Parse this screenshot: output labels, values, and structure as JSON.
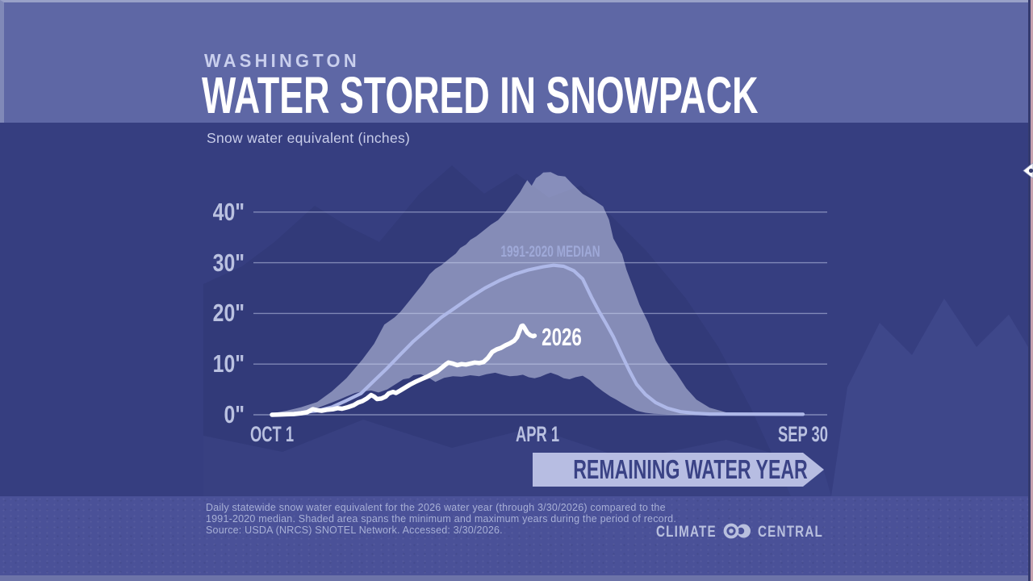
{
  "header": {
    "kicker": "WASHINGTON",
    "title": "WATER STORED IN SNOWPACK",
    "subtitle": "Snow water equivalent (inches)"
  },
  "banner": {
    "label": "REMAINING WATER YEAR"
  },
  "footer": {
    "lines": [
      "Daily statewide snow water equivalent for the 2026 water year (through 3/30/2026) compared to the",
      "1991-2020 median. Shaded area spans the minimum and maximum years during the period of record.",
      "Source: USDA (NRCS) SNOTEL Network. Accessed: 3/30/2026."
    ]
  },
  "logo": {
    "left": "CLIMATE",
    "right": "CENTRAL"
  },
  "chart_data": {
    "type": "area+line",
    "title": "Washington — Water Stored in Snowpack",
    "ylabel": "Snow water equivalent (inches)",
    "grid": "horizontal",
    "ylim": [
      0,
      50
    ],
    "yticks": [
      "0\"",
      "10\"",
      "20\"",
      "30\"",
      "40\""
    ],
    "ytick_values": [
      0,
      10,
      20,
      30,
      40
    ],
    "x_axis": {
      "unit": "days since Oct 1 (water year)",
      "xlim": [
        0,
        364
      ],
      "labels": [
        {
          "text": "OCT 1",
          "day": 0
        },
        {
          "text": "APR 1",
          "day": 182
        },
        {
          "text": "SEP 30",
          "day": 364
        }
      ]
    },
    "band": {
      "name": "min-max range during period of record",
      "max": [
        [
          0,
          0.3
        ],
        [
          10,
          0.8
        ],
        [
          20,
          1.5
        ],
        [
          31,
          2.5
        ],
        [
          41,
          4.6
        ],
        [
          51,
          7.2
        ],
        [
          62,
          10.9
        ],
        [
          70,
          14
        ],
        [
          77,
          17.8
        ],
        [
          84,
          19.2
        ],
        [
          88,
          20.3
        ],
        [
          94,
          22.4
        ],
        [
          100,
          24.6
        ],
        [
          104,
          26
        ],
        [
          108,
          27.7
        ],
        [
          112,
          28.8
        ],
        [
          116,
          29.5
        ],
        [
          122,
          30.9
        ],
        [
          126,
          31.8
        ],
        [
          129,
          32.9
        ],
        [
          133,
          33.6
        ],
        [
          136,
          34.5
        ],
        [
          140,
          35.2
        ],
        [
          144,
          36.1
        ],
        [
          150,
          37.5
        ],
        [
          155,
          38.4
        ],
        [
          160,
          40
        ],
        [
          165,
          42
        ],
        [
          170,
          43.9
        ],
        [
          173,
          45.4
        ],
        [
          175,
          46.3
        ],
        [
          178,
          45.2
        ],
        [
          181,
          46.7
        ],
        [
          184,
          47.3
        ],
        [
          186,
          47.8
        ],
        [
          191,
          47.9
        ],
        [
          196,
          47.2
        ],
        [
          201,
          47
        ],
        [
          206,
          45.5
        ],
        [
          213,
          43.6
        ],
        [
          221,
          42.3
        ],
        [
          227,
          41.1
        ],
        [
          231,
          38.5
        ],
        [
          234,
          34.8
        ],
        [
          240,
          31.7
        ],
        [
          243,
          28.6
        ],
        [
          248,
          24.8
        ],
        [
          252,
          21.7
        ],
        [
          258,
          18.1
        ],
        [
          263,
          14.5
        ],
        [
          270,
          10.8
        ],
        [
          277,
          8.3
        ],
        [
          284,
          5.2
        ],
        [
          291,
          3
        ],
        [
          300,
          1.4
        ],
        [
          311,
          0.5
        ],
        [
          322,
          0.1
        ],
        [
          364,
          0
        ]
      ],
      "min": [
        [
          0,
          0
        ],
        [
          10,
          0.2
        ],
        [
          20,
          0.5
        ],
        [
          31,
          1.3
        ],
        [
          41,
          2.4
        ],
        [
          46,
          3
        ],
        [
          51,
          3.6
        ],
        [
          57,
          4.3
        ],
        [
          62,
          4.6
        ],
        [
          68,
          4.8
        ],
        [
          73,
          4.4
        ],
        [
          79,
          5
        ],
        [
          85,
          6.1
        ],
        [
          90,
          7
        ],
        [
          94,
          7.2
        ],
        [
          97,
          7.8
        ],
        [
          102,
          8
        ],
        [
          107,
          7.4
        ],
        [
          112,
          6.5
        ],
        [
          118,
          7.3
        ],
        [
          124,
          7.6
        ],
        [
          130,
          7.5
        ],
        [
          136,
          7.8
        ],
        [
          142,
          7.6
        ],
        [
          147,
          8
        ],
        [
          153,
          8.3
        ],
        [
          158,
          7.9
        ],
        [
          163,
          7.6
        ],
        [
          168,
          7.7
        ],
        [
          172,
          7.9
        ],
        [
          176,
          7.4
        ],
        [
          180,
          7.2
        ],
        [
          184,
          7.5
        ],
        [
          188,
          8
        ],
        [
          191,
          8.3
        ],
        [
          196,
          7.8
        ],
        [
          200,
          7.2
        ],
        [
          204,
          7
        ],
        [
          208,
          7.4
        ],
        [
          213,
          7.7
        ],
        [
          218,
          6.8
        ],
        [
          222,
          5.7
        ],
        [
          227,
          4.6
        ],
        [
          232,
          3.6
        ],
        [
          236,
          3
        ],
        [
          240,
          2.3
        ],
        [
          245,
          1.5
        ],
        [
          250,
          0.8
        ],
        [
          256,
          0.4
        ],
        [
          262,
          0.2
        ],
        [
          270,
          0.1
        ],
        [
          280,
          0
        ],
        [
          364,
          0
        ]
      ]
    },
    "series": [
      {
        "name": "1991-2020 MEDIAN",
        "points": [
          [
            0,
            0
          ],
          [
            15,
            0.2
          ],
          [
            31,
            0.8
          ],
          [
            41,
            1.5
          ],
          [
            51,
            2.8
          ],
          [
            61,
            4.2
          ],
          [
            70,
            6.7
          ],
          [
            79,
            9.2
          ],
          [
            88,
            11.9
          ],
          [
            97,
            14.5
          ],
          [
            107,
            17
          ],
          [
            116,
            19.2
          ],
          [
            125,
            21
          ],
          [
            136,
            23.2
          ],
          [
            146,
            25
          ],
          [
            156,
            26.5
          ],
          [
            166,
            27.7
          ],
          [
            176,
            28.6
          ],
          [
            186,
            29.2
          ],
          [
            193,
            29.5
          ],
          [
            200,
            29.3
          ],
          [
            207,
            28.4
          ],
          [
            213,
            26.8
          ],
          [
            219,
            23.2
          ],
          [
            224,
            20.5
          ],
          [
            229,
            18
          ],
          [
            234,
            15.4
          ],
          [
            240,
            11.7
          ],
          [
            245,
            8.7
          ],
          [
            250,
            6
          ],
          [
            256,
            4
          ],
          [
            263,
            2.4
          ],
          [
            271,
            1.3
          ],
          [
            280,
            0.6
          ],
          [
            290,
            0.3
          ],
          [
            300,
            0.15
          ],
          [
            364,
            0.1
          ]
        ]
      },
      {
        "name": "2026",
        "points": [
          [
            0,
            0
          ],
          [
            5,
            0.05
          ],
          [
            10,
            0.1
          ],
          [
            15,
            0.15
          ],
          [
            20,
            0.3
          ],
          [
            24,
            0.5
          ],
          [
            26,
            0.8
          ],
          [
            28,
            1.1
          ],
          [
            31,
            0.9
          ],
          [
            34,
            0.8
          ],
          [
            38,
            1
          ],
          [
            42,
            1.1
          ],
          [
            45,
            1.3
          ],
          [
            48,
            1.2
          ],
          [
            52,
            1.5
          ],
          [
            56,
            1.9
          ],
          [
            59,
            2.4
          ],
          [
            62,
            2.7
          ],
          [
            65,
            3.2
          ],
          [
            68,
            3.9
          ],
          [
            70,
            3.6
          ],
          [
            72,
            3.1
          ],
          [
            75,
            3.2
          ],
          [
            78,
            3.6
          ],
          [
            80,
            4.2
          ],
          [
            83,
            4.5
          ],
          [
            85,
            4.3
          ],
          [
            88,
            4.8
          ],
          [
            92,
            5.5
          ],
          [
            95,
            6
          ],
          [
            99,
            6.6
          ],
          [
            103,
            7.1
          ],
          [
            107,
            7.6
          ],
          [
            110,
            8.1
          ],
          [
            113,
            8.5
          ],
          [
            116,
            9.2
          ],
          [
            119,
            9.9
          ],
          [
            121,
            10.3
          ],
          [
            124,
            10.1
          ],
          [
            127,
            9.8
          ],
          [
            130,
            10
          ],
          [
            133,
            9.9
          ],
          [
            136,
            10.1
          ],
          [
            139,
            10.3
          ],
          [
            142,
            10.2
          ],
          [
            145,
            10.4
          ],
          [
            148,
            11.2
          ],
          [
            151,
            12.4
          ],
          [
            154,
            12.9
          ],
          [
            157,
            13.2
          ],
          [
            160,
            13.7
          ],
          [
            163,
            14.1
          ],
          [
            166,
            14.6
          ],
          [
            168,
            15.3
          ],
          [
            170,
            16.8
          ],
          [
            171,
            17.5
          ],
          [
            172,
            17.6
          ],
          [
            173,
            17.2
          ],
          [
            175,
            16.2
          ],
          [
            177,
            15.7
          ],
          [
            179,
            15.5
          ],
          [
            180,
            15.6
          ]
        ]
      }
    ],
    "colors": {
      "band_fill": "rgba(223,229,250,0.48)",
      "median_line": "#aeb8e8",
      "line_2026": "#ffffff",
      "gridline": "rgba(203,211,241,0.5)"
    }
  }
}
